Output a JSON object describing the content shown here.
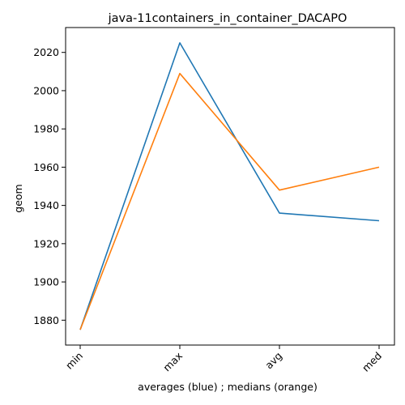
{
  "chart_data": {
    "type": "line",
    "title": "java-11containers_in_container_DACAPO",
    "xlabel": "averages (blue) ; medians (orange)",
    "ylabel": "geom",
    "categories": [
      "min",
      "max",
      "avg",
      "med"
    ],
    "ylim": [
      1867,
      2033
    ],
    "yticks": [
      1880,
      1900,
      1920,
      1940,
      1960,
      1980,
      2000,
      2020
    ],
    "grid": false,
    "series": [
      {
        "color": "#1f77b4",
        "values": [
          1875,
          2025,
          1936,
          1932
        ]
      },
      {
        "color": "#ff7f0e",
        "values": [
          1875,
          2009,
          1948,
          1960
        ]
      }
    ]
  }
}
